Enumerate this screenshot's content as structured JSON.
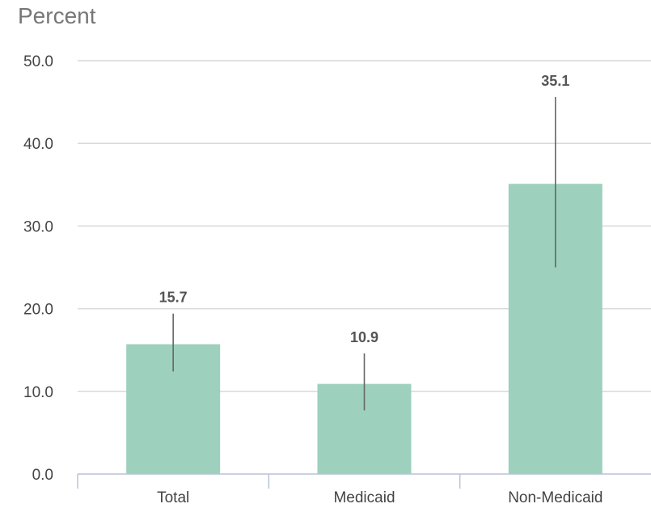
{
  "chart_data": {
    "type": "bar",
    "ylabel": "Percent",
    "categories": [
      "Total",
      "Medicaid",
      "Non-Medicaid"
    ],
    "values": [
      15.7,
      10.9,
      35.1
    ],
    "value_labels": [
      "15.7",
      "10.9",
      "35.1"
    ],
    "error_bars": [
      {
        "low": 12.4,
        "high": 19.4
      },
      {
        "low": 7.7,
        "high": 14.6
      },
      {
        "low": 25.0,
        "high": 45.6
      }
    ],
    "ylim": [
      0,
      50
    ],
    "yticks": [
      0,
      10,
      20,
      30,
      40,
      50
    ],
    "ytick_labels": [
      "0.0",
      "10.0",
      "20.0",
      "30.0",
      "40.0",
      "50.0"
    ],
    "grid": true,
    "colors": {
      "bar": "#9dd0bd",
      "grid": "#d9d9d9",
      "axis": "#b8c4d6",
      "error_bar": "#666666"
    }
  }
}
